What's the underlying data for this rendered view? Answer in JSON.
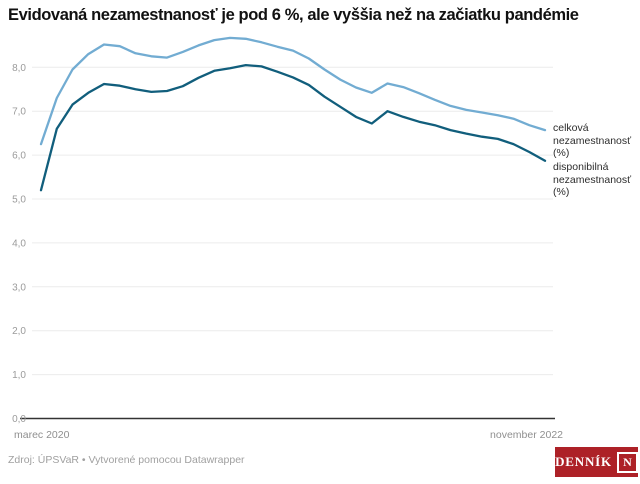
{
  "title": "Evidovaná nezamestnanosť je pod 6 %, ale vyššia než na začiatku pandémie",
  "chart_data": {
    "type": "line",
    "x": [
      "2020-03",
      "2020-04",
      "2020-05",
      "2020-06",
      "2020-07",
      "2020-08",
      "2020-09",
      "2020-10",
      "2020-11",
      "2020-12",
      "2021-01",
      "2021-02",
      "2021-03",
      "2021-04",
      "2021-05",
      "2021-06",
      "2021-07",
      "2021-08",
      "2021-09",
      "2021-10",
      "2021-11",
      "2021-12",
      "2022-01",
      "2022-02",
      "2022-03",
      "2022-04",
      "2022-05",
      "2022-06",
      "2022-07",
      "2022-08",
      "2022-09",
      "2022-10",
      "2022-11"
    ],
    "x_axis_labels": {
      "start": "marec 2020",
      "end": "november 2022"
    },
    "y_ticks": [
      "0,0",
      "1,0",
      "2,0",
      "3,0",
      "4,0",
      "5,0",
      "6,0",
      "7,0",
      "8,0"
    ],
    "ylim": [
      0,
      8.8
    ],
    "grid": "horizontal",
    "legend_position": "right-of-line-ends",
    "series": [
      {
        "name": "celková nezamestnanosť (%)",
        "color": "#72acd2",
        "values": [
          6.25,
          7.3,
          7.95,
          8.3,
          8.52,
          8.48,
          8.32,
          8.25,
          8.22,
          8.35,
          8.5,
          8.62,
          8.67,
          8.65,
          8.57,
          8.47,
          8.38,
          8.2,
          7.95,
          7.72,
          7.54,
          7.42,
          7.63,
          7.55,
          7.41,
          7.26,
          7.12,
          7.03,
          6.97,
          6.91,
          6.83,
          6.68,
          6.57
        ]
      },
      {
        "name": "disponibilná nezamestnanosť (%)",
        "color": "#115e7c",
        "values": [
          5.2,
          6.6,
          7.15,
          7.42,
          7.62,
          7.58,
          7.5,
          7.44,
          7.46,
          7.57,
          7.76,
          7.92,
          7.98,
          8.05,
          8.02,
          7.9,
          7.77,
          7.6,
          7.33,
          7.1,
          6.87,
          6.72,
          7.0,
          6.87,
          6.76,
          6.68,
          6.57,
          6.49,
          6.42,
          6.37,
          6.25,
          6.07,
          5.87
        ]
      }
    ],
    "colors": {
      "axis_baseline": "#333333",
      "gridline": "#ececec",
      "tick_label": "#9b9b9b"
    }
  },
  "footer": {
    "source": "Zdroj: ÚPSVaR • Vytvorené pomocou Datawrapper",
    "logo_text": "DENNÍK",
    "logo_n": "N"
  }
}
